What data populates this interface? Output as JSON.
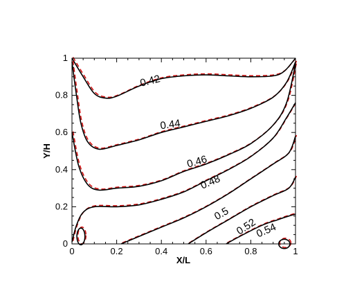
{
  "chart_data": {
    "type": "line",
    "xlabel": "X/L",
    "ylabel": "Y/H",
    "xlim": [
      0,
      1
    ],
    "ylim": [
      0,
      1
    ],
    "x_ticks": [
      "0",
      "0.2",
      "0.4",
      "0.6",
      "0.8",
      "1"
    ],
    "y_ticks": [
      "0",
      "0.2",
      "0.4",
      "0.6",
      "0.8",
      "1"
    ],
    "colors": {
      "solid": "#000000",
      "dashed": "#d01010"
    },
    "series": [
      {
        "level": "0.42",
        "points": [
          [
            0,
            1
          ],
          [
            0.05,
            0.9
          ],
          [
            0.1,
            0.81
          ],
          [
            0.15,
            0.785
          ],
          [
            0.2,
            0.795
          ],
          [
            0.3,
            0.85
          ],
          [
            0.4,
            0.89
          ],
          [
            0.5,
            0.905
          ],
          [
            0.6,
            0.91
          ],
          [
            0.7,
            0.905
          ],
          [
            0.8,
            0.9
          ],
          [
            0.9,
            0.905
          ],
          [
            0.95,
            0.93
          ],
          [
            1,
            1
          ]
        ]
      },
      {
        "level": "0.44",
        "points": [
          [
            0,
            0.98
          ],
          [
            0.02,
            0.8
          ],
          [
            0.04,
            0.65
          ],
          [
            0.07,
            0.55
          ],
          [
            0.12,
            0.51
          ],
          [
            0.2,
            0.53
          ],
          [
            0.3,
            0.56
          ],
          [
            0.4,
            0.6
          ],
          [
            0.5,
            0.63
          ],
          [
            0.6,
            0.66
          ],
          [
            0.7,
            0.69
          ],
          [
            0.8,
            0.73
          ],
          [
            0.9,
            0.79
          ],
          [
            0.96,
            0.87
          ],
          [
            1,
            0.98
          ]
        ]
      },
      {
        "level": "0.46",
        "points": [
          [
            0,
            0.6
          ],
          [
            0.03,
            0.42
          ],
          [
            0.07,
            0.32
          ],
          [
            0.12,
            0.29
          ],
          [
            0.2,
            0.3
          ],
          [
            0.3,
            0.31
          ],
          [
            0.4,
            0.34
          ],
          [
            0.5,
            0.39
          ],
          [
            0.6,
            0.43
          ],
          [
            0.7,
            0.48
          ],
          [
            0.8,
            0.54
          ],
          [
            0.9,
            0.64
          ],
          [
            0.96,
            0.76
          ],
          [
            1,
            0.97
          ]
        ]
      },
      {
        "level": "0.48",
        "points": [
          [
            0,
            0.01
          ],
          [
            0.02,
            0.1
          ],
          [
            0.05,
            0.17
          ],
          [
            0.1,
            0.2
          ],
          [
            0.2,
            0.2
          ],
          [
            0.3,
            0.21
          ],
          [
            0.4,
            0.24
          ],
          [
            0.5,
            0.28
          ],
          [
            0.6,
            0.34
          ],
          [
            0.7,
            0.4
          ],
          [
            0.8,
            0.47
          ],
          [
            0.9,
            0.57
          ],
          [
            0.96,
            0.68
          ],
          [
            1,
            0.76
          ]
        ]
      },
      {
        "level": "0.5",
        "points": [
          [
            0.22,
            0
          ],
          [
            0.3,
            0.04
          ],
          [
            0.4,
            0.09
          ],
          [
            0.5,
            0.14
          ],
          [
            0.6,
            0.2
          ],
          [
            0.7,
            0.27
          ],
          [
            0.8,
            0.35
          ],
          [
            0.9,
            0.43
          ],
          [
            0.97,
            0.49
          ],
          [
            1,
            0.58
          ]
        ]
      },
      {
        "level": "0.52",
        "points": [
          [
            0.52,
            0
          ],
          [
            0.6,
            0.06
          ],
          [
            0.7,
            0.13
          ],
          [
            0.8,
            0.2
          ],
          [
            0.9,
            0.26
          ],
          [
            0.97,
            0.3
          ],
          [
            1,
            0.36
          ]
        ]
      },
      {
        "level": "0.54",
        "points": [
          [
            0.69,
            0
          ],
          [
            0.75,
            0.04
          ],
          [
            0.85,
            0.1
          ],
          [
            0.92,
            0.13
          ],
          [
            0.97,
            0.15
          ],
          [
            1,
            0.16
          ]
        ]
      }
    ],
    "labels": [
      {
        "text": "0.42",
        "x": 0.35,
        "y": 0.875,
        "angle": -14
      },
      {
        "text": "0.44",
        "x": 0.44,
        "y": 0.64,
        "angle": -8
      },
      {
        "text": "0.46",
        "x": 0.56,
        "y": 0.44,
        "angle": -16
      },
      {
        "text": "0.48",
        "x": 0.62,
        "y": 0.33,
        "angle": -23
      },
      {
        "text": "0.5",
        "x": 0.67,
        "y": 0.16,
        "angle": -30
      },
      {
        "text": "0.52",
        "x": 0.78,
        "y": 0.09,
        "angle": -33
      },
      {
        "text": "0.54",
        "x": 0.87,
        "y": 0.07,
        "angle": -24
      }
    ],
    "loops": [
      {
        "cx": 0.04,
        "cy": 0.04,
        "rx": 0.018,
        "ry": 0.045
      },
      {
        "cx": 0.95,
        "cy": 0.0,
        "rx": 0.025,
        "ry": 0.025
      }
    ]
  }
}
